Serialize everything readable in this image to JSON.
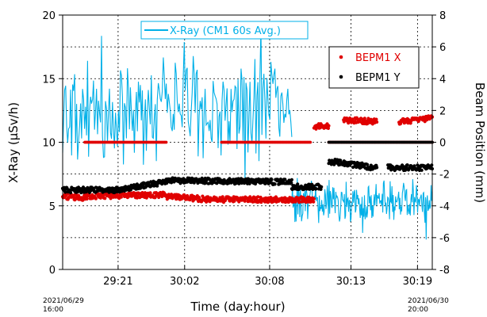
{
  "chart_data": {
    "type": "line",
    "xlabel": "Time (day:hour)",
    "ylabel_left": "X-Ray (μSv/h)",
    "ylabel_right": "Beam Position (mm)",
    "y_left_range": [
      0,
      20
    ],
    "y_left_ticks": [
      "0",
      "5",
      "10",
      "15",
      "20"
    ],
    "y_right_range": [
      -8,
      8
    ],
    "y_right_ticks": [
      "-8",
      "-6",
      "-4",
      "-2",
      "0",
      "2",
      "4",
      "6",
      "8"
    ],
    "x_range": [
      0,
      100
    ],
    "x_tick_labels": [
      {
        "x": 15,
        "label": "29:21"
      },
      {
        "x": 33,
        "label": "30:02"
      },
      {
        "x": 56,
        "label": "30:08"
      },
      {
        "x": 78,
        "label": "30:13"
      },
      {
        "x": 96,
        "label": "30:19"
      }
    ],
    "x_start_label": [
      "2021/06/29",
      "16:00"
    ],
    "x_end_label": [
      "2021/06/30",
      "20:00"
    ],
    "grid": true,
    "legend": [
      {
        "name": "X-Ray (CM1 60s Avg.)",
        "color": "#00b0e8",
        "position": "top-center"
      },
      {
        "name": "BEPM1 X",
        "color": "#e00000",
        "position": "top-right"
      },
      {
        "name": "BEPM1 Y",
        "color": "#000000",
        "position": "top-right"
      }
    ],
    "series": [
      {
        "name": "X-Ray (CM1 60s Avg.)",
        "axis": "left",
        "color": "#00b0e8",
        "segments": [
          {
            "x": [
              0,
              62
            ],
            "mean": 12.6,
            "spread": 3.2
          },
          {
            "x": [
              62,
              100
            ],
            "mean": 5.3,
            "spread": 1.3
          }
        ]
      },
      {
        "name": "BEPM1 X",
        "axis": "right",
        "color": "#e00000",
        "segments": [
          {
            "x": [
              0,
              6
            ],
            "y": [
              -3.4,
              -3.5
            ]
          },
          {
            "x": [
              6,
              28
            ],
            "y": [
              -3.4,
              -3.3
            ]
          },
          {
            "x": [
              28,
              40
            ],
            "y": [
              -3.4,
              -3.6
            ]
          },
          {
            "x": [
              40,
              68
            ],
            "y": [
              -3.6,
              -3.6
            ]
          },
          {
            "x": [
              68,
              72
            ],
            "y": [
              1.0,
              1.0
            ]
          },
          {
            "x": [
              76,
              85
            ],
            "y": [
              1.4,
              1.3
            ]
          },
          {
            "x": [
              91,
              100
            ],
            "y": [
              1.3,
              1.5
            ]
          }
        ],
        "zero_segments": [
          [
            6,
            28
          ],
          [
            43,
            67
          ],
          [
            72,
            100
          ]
        ]
      },
      {
        "name": "BEPM1 Y",
        "axis": "right",
        "color": "#000000",
        "segments": [
          {
            "x": [
              0,
              14
            ],
            "y": [
              -3.0,
              -3.0
            ]
          },
          {
            "x": [
              14,
              28
            ],
            "y": [
              -3.0,
              -2.5
            ]
          },
          {
            "x": [
              28,
              62
            ],
            "y": [
              -2.4,
              -2.5
            ]
          },
          {
            "x": [
              62,
              70
            ],
            "y": [
              -2.8,
              -2.8
            ]
          },
          {
            "x": [
              72,
              85
            ],
            "y": [
              -1.2,
              -1.6
            ]
          },
          {
            "x": [
              88,
              100
            ],
            "y": [
              -1.6,
              -1.6
            ]
          }
        ],
        "zero_segments": [
          [
            72,
            100
          ]
        ]
      }
    ]
  }
}
